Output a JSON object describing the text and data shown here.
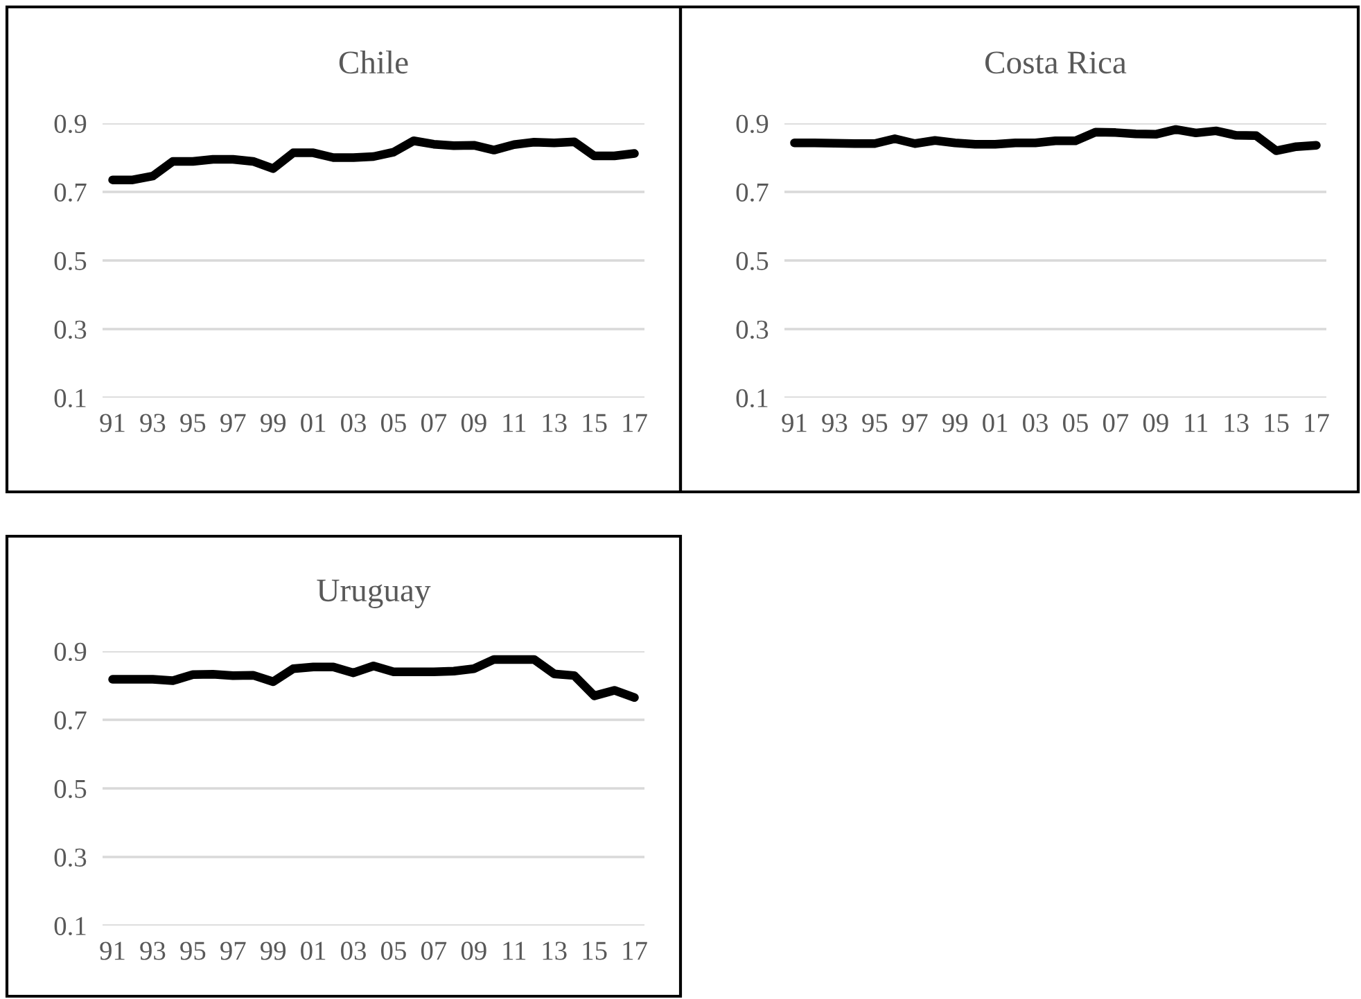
{
  "chart_data": [
    {
      "type": "line",
      "title": "Chile",
      "categories": [
        "91",
        null,
        "93",
        null,
        "95",
        null,
        "97",
        null,
        "99",
        null,
        "01",
        null,
        "03",
        null,
        "05",
        null,
        "07",
        null,
        "09",
        null,
        "11",
        null,
        "13",
        null,
        "15",
        null,
        "17"
      ],
      "series": [
        {
          "color": "#000000",
          "values": [
            0.735,
            0.735,
            0.746,
            0.789,
            0.789,
            0.795,
            0.795,
            0.789,
            0.768,
            0.814,
            0.814,
            0.8,
            0.8,
            0.803,
            0.816,
            0.849,
            0.839,
            0.835,
            0.836,
            0.822,
            0.838,
            0.845,
            0.843,
            0.846,
            0.805,
            0.805,
            0.812
          ]
        }
      ],
      "ylim": [
        0.1,
        0.9
      ],
      "yticks": [
        0.1,
        0.3,
        0.5,
        0.7,
        0.9
      ],
      "grid": "y"
    },
    {
      "type": "line",
      "title": "Costa Rica",
      "categories": [
        "91",
        null,
        "93",
        null,
        "95",
        null,
        "97",
        null,
        "99",
        null,
        "01",
        null,
        "03",
        null,
        "05",
        null,
        "07",
        null,
        "09",
        null,
        "11",
        null,
        "13",
        null,
        "15",
        null,
        "17"
      ],
      "series": [
        {
          "color": "#000000",
          "values": [
            0.843,
            0.843,
            0.842,
            0.841,
            0.841,
            0.855,
            0.841,
            0.85,
            0.843,
            0.839,
            0.839,
            0.843,
            0.843,
            0.849,
            0.849,
            0.874,
            0.873,
            0.869,
            0.868,
            0.882,
            0.872,
            0.878,
            0.865,
            0.864,
            0.82,
            0.832,
            0.836
          ]
        }
      ],
      "ylim": [
        0.1,
        0.9
      ],
      "yticks": [
        0.1,
        0.3,
        0.5,
        0.7,
        0.9
      ],
      "grid": "y"
    },
    {
      "type": "line",
      "title": "Uruguay",
      "categories": [
        "91",
        null,
        "93",
        null,
        "95",
        null,
        "97",
        null,
        "99",
        null,
        "01",
        null,
        "03",
        null,
        "05",
        null,
        "07",
        null,
        "09",
        null,
        "11",
        null,
        "13",
        null,
        "15",
        null,
        "17"
      ],
      "series": [
        {
          "color": "#000000",
          "values": [
            0.818,
            0.818,
            0.818,
            0.814,
            0.832,
            0.833,
            0.829,
            0.83,
            0.811,
            0.849,
            0.854,
            0.854,
            0.837,
            0.857,
            0.84,
            0.84,
            0.84,
            0.842,
            0.849,
            0.876,
            0.876,
            0.876,
            0.834,
            0.829,
            0.77,
            0.786,
            0.765
          ]
        }
      ],
      "ylim": [
        0.1,
        0.9
      ],
      "yticks": [
        0.1,
        0.3,
        0.5,
        0.7,
        0.9
      ],
      "grid": "y"
    }
  ]
}
